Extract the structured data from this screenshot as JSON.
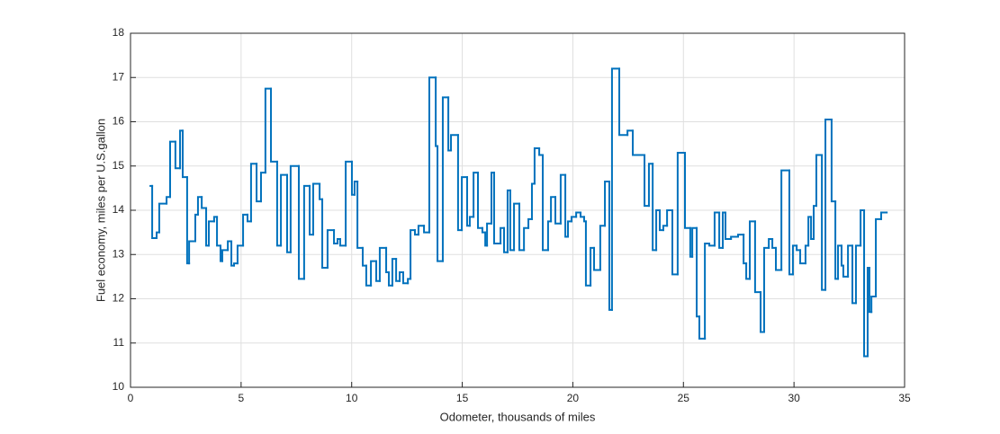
{
  "chart_data": {
    "type": "stairs",
    "xlabel": "Odometer, thousands of miles",
    "ylabel": "Fuel economy, miles per U.S.gallon",
    "color": "#0072bd",
    "grid": true,
    "xlim": [
      0,
      35
    ],
    "xticks": [
      0,
      5,
      10,
      15,
      20,
      25,
      30,
      35
    ],
    "ylim": [
      10,
      18
    ],
    "yticks": [
      10,
      11,
      12,
      13,
      14,
      15,
      16,
      17,
      18
    ],
    "x": [
      0.9,
      0.98,
      1.18,
      1.3,
      1.63,
      1.79,
      2.03,
      2.24,
      2.36,
      2.56,
      2.65,
      2.93,
      3.05,
      3.22,
      3.42,
      3.54,
      3.78,
      3.91,
      4.07,
      4.15,
      4.4,
      4.56,
      4.68,
      4.84,
      5.09,
      5.29,
      5.45,
      5.7,
      5.9,
      6.1,
      6.35,
      6.63,
      6.8,
      7.08,
      7.24,
      7.61,
      7.85,
      8.1,
      8.26,
      8.55,
      8.67,
      8.91,
      9.2,
      9.36,
      9.48,
      9.73,
      10.01,
      10.13,
      10.26,
      10.5,
      10.66,
      10.87,
      11.11,
      11.27,
      11.56,
      11.68,
      11.84,
      12.01,
      12.17,
      12.33,
      12.54,
      12.66,
      12.86,
      13.02,
      13.27,
      13.51,
      13.8,
      13.88,
      14.12,
      14.37,
      14.49,
      14.81,
      14.98,
      15.22,
      15.34,
      15.51,
      15.71,
      15.91,
      16.04,
      16.12,
      16.32,
      16.44,
      16.73,
      16.89,
      17.05,
      17.17,
      17.34,
      17.58,
      17.79,
      17.99,
      18.15,
      18.27,
      18.48,
      18.64,
      18.88,
      19.01,
      19.21,
      19.45,
      19.66,
      19.78,
      19.94,
      20.15,
      20.35,
      20.51,
      20.59,
      20.8,
      20.96,
      21.24,
      21.45,
      21.65,
      21.77,
      22.1,
      22.47,
      22.71,
      23.24,
      23.44,
      23.61,
      23.77,
      23.93,
      24.09,
      24.26,
      24.5,
      24.74,
      25.07,
      25.31,
      25.4,
      25.6,
      25.72,
      25.97,
      26.17,
      26.41,
      26.62,
      26.78,
      26.9,
      27.15,
      27.47,
      27.72,
      27.84,
      28.0,
      28.24,
      28.49,
      28.65,
      28.86,
      29.02,
      29.18,
      29.43,
      29.79,
      29.95,
      30.12,
      30.28,
      30.52,
      30.65,
      30.77,
      30.89,
      31.01,
      31.26,
      31.42,
      31.7,
      31.87,
      31.99,
      32.15,
      32.23,
      32.44,
      32.64,
      32.8,
      33.01,
      33.17,
      33.33,
      33.41,
      33.5,
      33.7,
      33.94,
      34.19
    ],
    "values": [
      14.55,
      13.37,
      13.5,
      14.15,
      14.3,
      15.55,
      14.95,
      15.8,
      14.75,
      12.8,
      13.3,
      13.9,
      14.3,
      14.05,
      13.2,
      13.75,
      13.85,
      13.2,
      12.85,
      13.1,
      13.3,
      12.75,
      12.8,
      13.2,
      13.9,
      13.75,
      15.05,
      14.2,
      14.85,
      16.75,
      15.1,
      13.2,
      14.8,
      13.05,
      15.0,
      12.45,
      14.55,
      13.45,
      14.6,
      14.25,
      12.7,
      13.55,
      13.25,
      13.35,
      13.2,
      15.1,
      14.35,
      14.65,
      13.15,
      12.75,
      12.3,
      12.85,
      12.4,
      13.15,
      12.6,
      12.3,
      12.9,
      12.4,
      12.6,
      12.35,
      12.45,
      13.55,
      13.45,
      13.65,
      13.5,
      17.0,
      15.45,
      12.85,
      16.55,
      15.35,
      15.7,
      13.55,
      14.75,
      13.65,
      13.85,
      14.85,
      13.6,
      13.5,
      13.2,
      13.7,
      14.85,
      13.25,
      13.6,
      13.05,
      14.45,
      13.1,
      14.15,
      13.1,
      13.6,
      13.8,
      14.6,
      15.4,
      15.25,
      13.1,
      13.75,
      14.3,
      13.7,
      14.8,
      13.4,
      13.75,
      13.85,
      13.95,
      13.85,
      13.75,
      12.3,
      13.15,
      12.65,
      13.65,
      14.65,
      11.75,
      17.2,
      15.7,
      15.8,
      15.25,
      14.1,
      15.05,
      13.1,
      14.0,
      13.55,
      13.65,
      14.0,
      12.55,
      15.3,
      13.6,
      12.95,
      13.6,
      11.6,
      11.1,
      13.25,
      13.2,
      13.95,
      13.15,
      13.95,
      13.35,
      13.4,
      13.45,
      12.8,
      12.45,
      13.75,
      12.15,
      11.25,
      13.15,
      13.35,
      13.15,
      12.65,
      14.9,
      12.55,
      13.2,
      13.1,
      12.8,
      13.2,
      13.85,
      13.35,
      14.1,
      15.25,
      12.2,
      16.05,
      14.2,
      12.45,
      13.2,
      12.75,
      12.5,
      13.2,
      11.9,
      13.2,
      14.0,
      10.7,
      12.7,
      11.7,
      12.05,
      13.8,
      13.95,
      13.95
    ]
  }
}
